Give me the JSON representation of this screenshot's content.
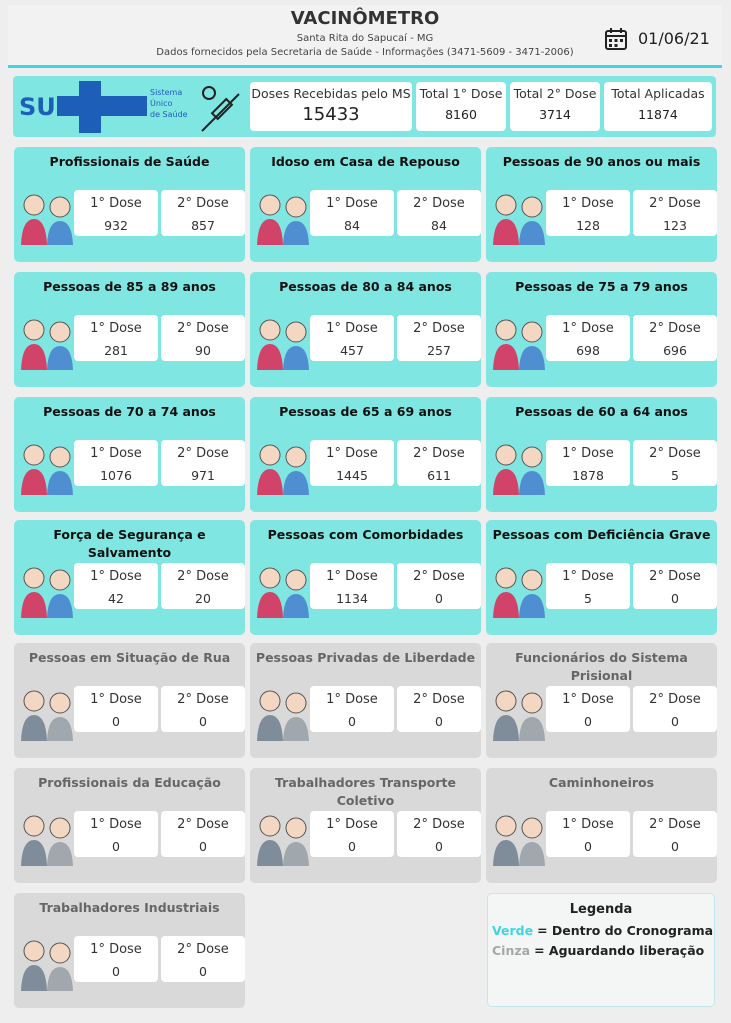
{
  "header": {
    "title": "VACINÔMETRO",
    "subtitle": "Santa Rita do Sapucaí - MG",
    "source": "Dados fornecidos pela Secretaria de Saúde - Informações (3471-5609 - 3471-2006)",
    "date": "01/06/21"
  },
  "logo": {
    "text": "SUS",
    "lines": [
      "Sistema",
      "Único",
      "de Saúde"
    ]
  },
  "summary": [
    {
      "label": "Doses Recebidas pelo MS",
      "value": 15433
    },
    {
      "label": "Total 1° Dose",
      "value": 8160
    },
    {
      "label": "Total 2° Dose",
      "value": 3714
    },
    {
      "label": "Total Aplicadas",
      "value": 11874
    }
  ],
  "cards": [
    {
      "title": "Profissionais de Saúde",
      "color": "#80e6e1",
      "doses": [
        {
          "label": "1° Dose",
          "value": 932
        },
        {
          "label": "2° Dose",
          "value": 857
        }
      ]
    },
    {
      "title": "Idoso em Casa de Repouso",
      "color": "#80e6e1",
      "doses": [
        {
          "label": "1° Dose",
          "value": 84
        },
        {
          "label": "2° Dose",
          "value": 84
        }
      ]
    },
    {
      "title": "Pessoas de 90 anos ou mais",
      "color": "#80e6e1",
      "doses": [
        {
          "label": "1° Dose",
          "value": 128
        },
        {
          "label": "2° Dose",
          "value": 123
        }
      ]
    },
    {
      "title": "Pessoas de 85 a 89 anos",
      "color": "#80e6e1",
      "doses": [
        {
          "label": "1° Dose",
          "value": 281
        },
        {
          "label": "2° Dose",
          "value": 90
        }
      ]
    },
    {
      "title": "Pessoas de 80 a 84 anos",
      "color": "#80e6e1",
      "doses": [
        {
          "label": "1° Dose",
          "value": 457
        },
        {
          "label": "2° Dose",
          "value": 257
        }
      ]
    },
    {
      "title": "Pessoas de 75 a 79 anos",
      "color": "#80e6e1",
      "doses": [
        {
          "label": "1° Dose",
          "value": 698
        },
        {
          "label": "2° Dose",
          "value": 696
        }
      ]
    },
    {
      "title": "Pessoas de 70 a 74 anos",
      "color": "#80e6e1",
      "doses": [
        {
          "label": "1° Dose",
          "value": 1076
        },
        {
          "label": "2° Dose",
          "value": 971
        }
      ]
    },
    {
      "title": "Pessoas de 65 a 69 anos",
      "color": "#80e6e1",
      "doses": [
        {
          "label": "1° Dose",
          "value": 1445
        },
        {
          "label": "2° Dose",
          "value": 611
        }
      ]
    },
    {
      "title": "Pessoas de 60 a 64 anos",
      "color": "#80e6e1",
      "doses": [
        {
          "label": "1° Dose",
          "value": 1878
        },
        {
          "label": "2° Dose",
          "value": 5
        }
      ]
    },
    {
      "title": "Força de Segurança e Salvamento",
      "color": "#80e6e1",
      "doses": [
        {
          "label": "1° Dose",
          "value": 42
        },
        {
          "label": "2° Dose",
          "value": 20
        }
      ]
    },
    {
      "title": "Pessoas com Comorbidades",
      "color": "#80e6e1",
      "doses": [
        {
          "label": "1° Dose",
          "value": 1134
        },
        {
          "label": "2° Dose",
          "value": 0
        }
      ]
    },
    {
      "title": "Pessoas com Deficiência Grave",
      "color": "#80e6e1",
      "doses": [
        {
          "label": "1° Dose",
          "value": 5
        },
        {
          "label": "2° Dose",
          "value": 0
        }
      ]
    },
    {
      "title": "Pessoas em Situação de Rua",
      "color": "#d9d9d9",
      "doses": [
        {
          "label": "1° Dose",
          "value": 0
        },
        {
          "label": "2° Dose",
          "value": 0
        }
      ]
    },
    {
      "title": "Pessoas Privadas de Liberdade",
      "color": "#d9d9d9",
      "doses": [
        {
          "label": "1° Dose",
          "value": 0
        },
        {
          "label": "2° Dose",
          "value": 0
        }
      ]
    },
    {
      "title": "Funcionários do Sistema Prisional",
      "color": "#d9d9d9",
      "doses": [
        {
          "label": "1° Dose",
          "value": 0
        },
        {
          "label": "2° Dose",
          "value": 0
        }
      ]
    },
    {
      "title": "Profissionais da Educação",
      "color": "#d9d9d9",
      "doses": [
        {
          "label": "1° Dose",
          "value": 0
        },
        {
          "label": "2° Dose",
          "value": 0
        }
      ]
    },
    {
      "title": "Trabalhadores Transporte Coletivo",
      "color": "#d9d9d9",
      "doses": [
        {
          "label": "1° Dose",
          "value": 0
        },
        {
          "label": "2° Dose",
          "value": 0
        }
      ]
    },
    {
      "title": "Caminhoneiros",
      "color": "#d9d9d9",
      "doses": [
        {
          "label": "1° Dose",
          "value": 0
        },
        {
          "label": "2° Dose",
          "value": 0
        }
      ]
    },
    {
      "title": "Trabalhadores Industriais",
      "color": "#d9d9d9",
      "doses": [
        {
          "label": "1° Dose",
          "value": 0
        },
        {
          "label": "2° Dose",
          "value": 0
        }
      ]
    }
  ],
  "legend": {
    "title": "Legenda",
    "items": [
      {
        "key": "Verde",
        "text": "= Dentro do Cronograma",
        "color": "#3ed6e0"
      },
      {
        "key": "Cinza",
        "text": "= Aguardando liberação",
        "color": "#a6a6a6"
      }
    ]
  }
}
